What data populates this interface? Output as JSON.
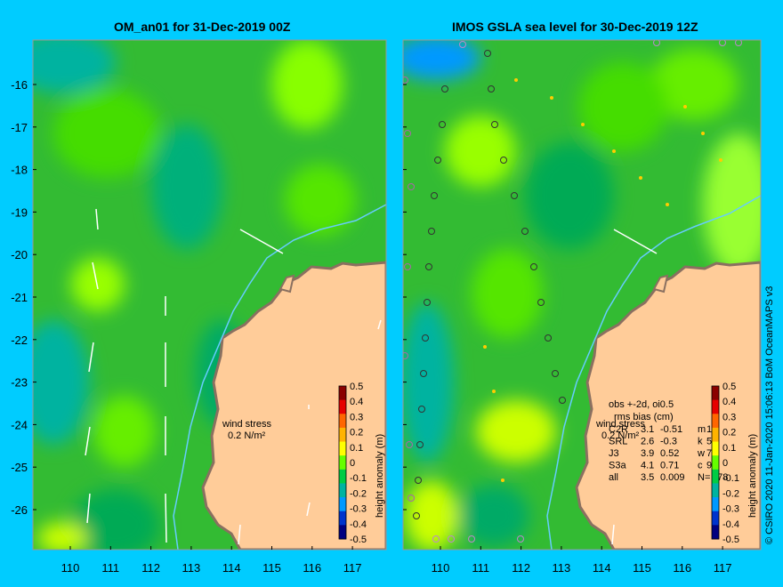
{
  "left_panel": {
    "title": "OM_an01 for 31-Dec-2019 00Z",
    "wind_label": "wind stress",
    "wind_scale": "0.2 N/m²"
  },
  "right_panel": {
    "title": "IMOS GSLA sea level  for 30-Dec-2019 12Z",
    "obs_header": "obs +-2d, oi0.5",
    "obs_subheader": "rms bias (cm)",
    "wind_label": "wind stress",
    "wind_scale": "0.2 N/m²",
    "stats": [
      {
        "sat": "C2R",
        "rms": "3.1",
        "bias": "-0.51",
        "code": "m",
        "n": "15"
      },
      {
        "sat": "SRL",
        "rms": "2.6",
        "bias": "-0.3",
        "code": "k",
        "n": "58"
      },
      {
        "sat": "J3",
        "rms": "3.9",
        "bias": "0.52",
        "code": "w",
        "n": "72"
      },
      {
        "sat": "S3a",
        "rms": "4.1",
        "bias": "0.71",
        "code": "c",
        "n": "90"
      },
      {
        "sat": "all",
        "rms": "3.5",
        "bias": "0.009",
        "code": "N=",
        "n": "378"
      }
    ]
  },
  "lat_ticks": [
    "-16",
    "-17",
    "-18",
    "-19",
    "-20",
    "-21",
    "-22",
    "-23",
    "-24",
    "-25",
    "-26"
  ],
  "lon_ticks": [
    "110",
    "111",
    "112",
    "113",
    "114",
    "115",
    "116",
    "117"
  ],
  "colorbar": {
    "label": "height anomaly (m)",
    "ticks": [
      "0.5",
      "0.4",
      "0.3",
      "0.2",
      "0.1",
      "0",
      "-0.1",
      "-0.2",
      "-0.3",
      "-0.4",
      "-0.5"
    ],
    "colors": [
      "#8b0000",
      "#e60000",
      "#ff6600",
      "#ffb300",
      "#ffff00",
      "#66ff00",
      "#00cc44",
      "#00b3a0",
      "#0099ff",
      "#0033cc",
      "#000080"
    ]
  },
  "credit": "© CSIRO 2020   11-Jan-2020 15:06:13 BoM OceanMAPS v3",
  "colors": {
    "background": "#00ccff",
    "sea": "#33cc33",
    "land": "#ffcc99",
    "coast": "#a89080"
  }
}
